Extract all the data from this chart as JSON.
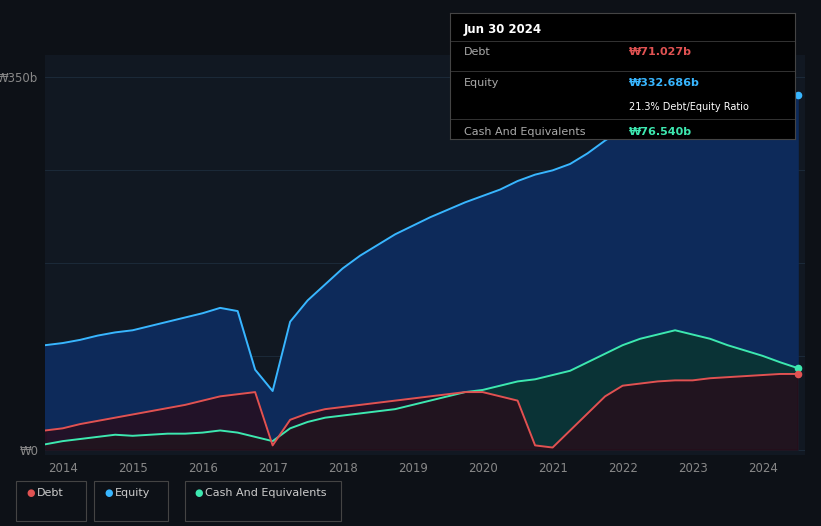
{
  "background_color": "#0d1117",
  "plot_bg_color": "#111822",
  "grid_color": "#1e2d3d",
  "title_box": {
    "date": "Jun 30 2024",
    "debt_label": "Debt",
    "debt_value": "₩71.027b",
    "equity_label": "Equity",
    "equity_value": "₩332.686b",
    "ratio_text": "21.3% Debt/Equity Ratio",
    "cash_label": "Cash And Equivalents",
    "cash_value": "₩76.540b"
  },
  "y_label_350": "₩350b",
  "y_label_0": "₩0",
  "x_ticks": [
    2014,
    2015,
    2016,
    2017,
    2018,
    2019,
    2020,
    2021,
    2022,
    2023,
    2024
  ],
  "legend": [
    {
      "label": "Debt",
      "color": "#e05252"
    },
    {
      "label": "Equity",
      "color": "#38b6ff"
    },
    {
      "label": "Cash And Equivalents",
      "color": "#3de8b0"
    }
  ],
  "equity_color": "#38b6ff",
  "equity_fill": "#0d2a5a",
  "debt_color": "#e05252",
  "debt_fill": "#2a0a18",
  "cash_color": "#3de8b0",
  "cash_fill": "#0a3530",
  "years": [
    2013.75,
    2014.0,
    2014.25,
    2014.5,
    2014.75,
    2015.0,
    2015.25,
    2015.5,
    2015.75,
    2016.0,
    2016.25,
    2016.5,
    2016.75,
    2017.0,
    2017.25,
    2017.5,
    2017.75,
    2018.0,
    2018.25,
    2018.5,
    2018.75,
    2019.0,
    2019.25,
    2019.5,
    2019.75,
    2020.0,
    2020.25,
    2020.5,
    2020.75,
    2021.0,
    2021.25,
    2021.5,
    2021.75,
    2022.0,
    2022.25,
    2022.5,
    2022.75,
    2023.0,
    2023.25,
    2023.5,
    2023.75,
    2024.0,
    2024.25,
    2024.5
  ],
  "equity": [
    98,
    100,
    103,
    107,
    110,
    112,
    116,
    120,
    124,
    128,
    133,
    130,
    75,
    55,
    120,
    140,
    155,
    170,
    182,
    192,
    202,
    210,
    218,
    225,
    232,
    238,
    244,
    252,
    258,
    262,
    268,
    278,
    290,
    300,
    310,
    318,
    312,
    308,
    318,
    326,
    330,
    336,
    340,
    332.686
  ],
  "debt": [
    18,
    20,
    24,
    27,
    30,
    33,
    36,
    39,
    42,
    46,
    50,
    52,
    54,
    4,
    28,
    34,
    38,
    40,
    42,
    44,
    46,
    48,
    50,
    52,
    54,
    54,
    50,
    46,
    4,
    2,
    18,
    34,
    50,
    60,
    62,
    64,
    65,
    65,
    67,
    68,
    69,
    70,
    71,
    71.027
  ],
  "cash": [
    5,
    8,
    10,
    12,
    14,
    13,
    14,
    15,
    15,
    16,
    18,
    16,
    12,
    8,
    20,
    26,
    30,
    32,
    34,
    36,
    38,
    42,
    46,
    50,
    54,
    56,
    60,
    64,
    66,
    70,
    74,
    82,
    90,
    98,
    104,
    108,
    112,
    108,
    104,
    98,
    93,
    88,
    82,
    76.54
  ]
}
